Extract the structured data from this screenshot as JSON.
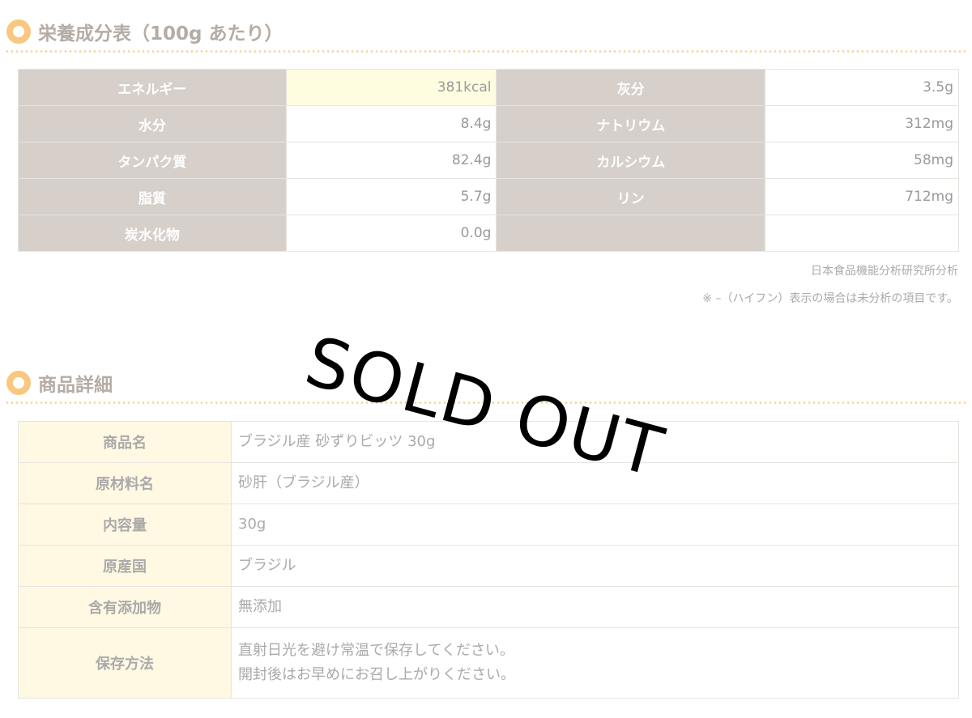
{
  "nutrition": {
    "title": "栄養成分表（100g あたり）",
    "rows": [
      {
        "l1": "エネルギー",
        "v1": "381kcal",
        "l2": "灰分",
        "v2": "3.5g"
      },
      {
        "l1": "水分",
        "v1": "8.4g",
        "l2": "ナトリウム",
        "v2": "312mg"
      },
      {
        "l1": "タンパク質",
        "v1": "82.4g",
        "l2": "カルシウム",
        "v2": "58mg"
      },
      {
        "l1": "脂質",
        "v1": "5.7g",
        "l2": "リン",
        "v2": "712mg"
      },
      {
        "l1": "炭水化物",
        "v1": "0.0g",
        "l2": "",
        "v2": ""
      }
    ],
    "source": "日本食品機能分析研究所分析",
    "footnote": "※ –（ハイフン）表示の場合は未分析の項目です。"
  },
  "overlay": {
    "text": "SOLD OUT"
  },
  "details": {
    "title": "商品詳細",
    "rows": [
      {
        "label": "商品名",
        "value": "ブラジル産 砂ずりビッツ 30g"
      },
      {
        "label": "原材料名",
        "value": "砂肝（ブラジル産）"
      },
      {
        "label": "内容量",
        "value": "30g"
      },
      {
        "label": "原産国",
        "value": "ブラジル"
      },
      {
        "label": "含有添加物",
        "value": "無添加"
      },
      {
        "label": "保存方法",
        "value": "直射日光を避け常温で保存してください。",
        "value2": "開封後はお早めにお召し上がりください。"
      }
    ]
  },
  "colors": {
    "accent": "#f8c880",
    "label_bg": "#d6cfca",
    "highlight_bg": "#fffde0",
    "detail_label_bg": "#fff8e2"
  }
}
